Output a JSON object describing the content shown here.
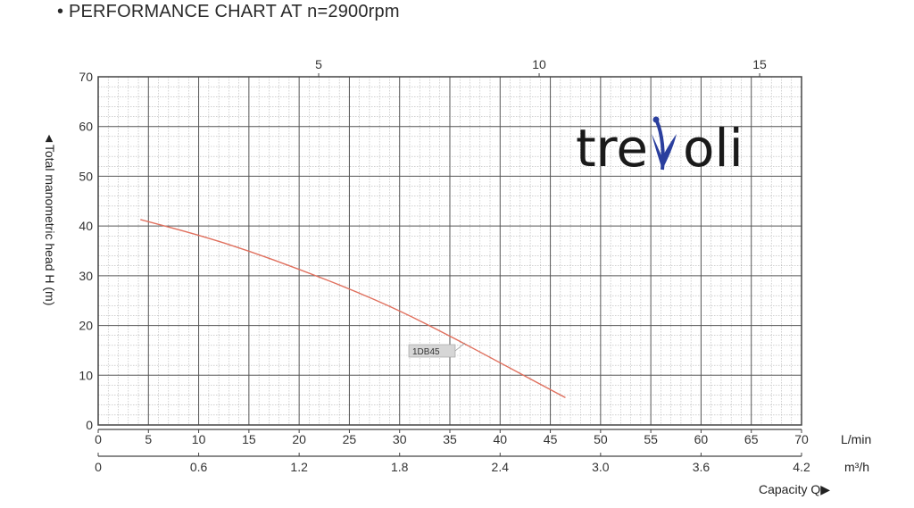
{
  "header": {
    "title": "• PERFORMANCE CHART AT n=2900rpm"
  },
  "logo": {
    "text_left": "tre",
    "text_right": "oli",
    "icon": "leaf-v-icon",
    "colors": {
      "text": "#1a1a1a",
      "icon": "#2b3f9e"
    }
  },
  "chart_data": {
    "type": "line",
    "title": "PERFORMANCE CHART AT n=2900rpm",
    "ylabel": "Total manometric head H (m)",
    "xlabel": "Capacity Q",
    "y_ticks": [
      "0",
      "10",
      "20",
      "30",
      "40",
      "50",
      "60",
      "70"
    ],
    "ylim": [
      0,
      70
    ],
    "x_axes": [
      {
        "unit": "L/min",
        "ticks": [
          "0",
          "5",
          "10",
          "15",
          "20",
          "25",
          "30",
          "35",
          "40",
          "45",
          "50",
          "55",
          "60",
          "65",
          "70"
        ],
        "range": [
          0,
          70
        ]
      },
      {
        "unit": "m³/h",
        "ticks": [
          "0",
          "0.6",
          "1.2",
          "1.8",
          "2.4",
          "3.0",
          "3.6",
          "4.2"
        ],
        "range": [
          0,
          4.2
        ]
      },
      {
        "unit": "",
        "position": "top",
        "ticks": [
          "5",
          "10",
          "15"
        ],
        "tick_values": [
          5,
          10,
          15
        ],
        "range": [
          0,
          16
        ],
        "note": "top scale"
      }
    ],
    "grid": true,
    "series": [
      {
        "name": "1DB45",
        "color": "#e0705e",
        "x": [
          4.2,
          10,
          15,
          20,
          25,
          30,
          35,
          40,
          46.5
        ],
        "y": [
          41.3,
          38.2,
          35.0,
          31.3,
          27.4,
          23.0,
          17.9,
          12.5,
          5.5
        ]
      }
    ],
    "annotations": [
      {
        "text": "1DB45",
        "x": 36.5,
        "y": 16.5
      }
    ]
  }
}
